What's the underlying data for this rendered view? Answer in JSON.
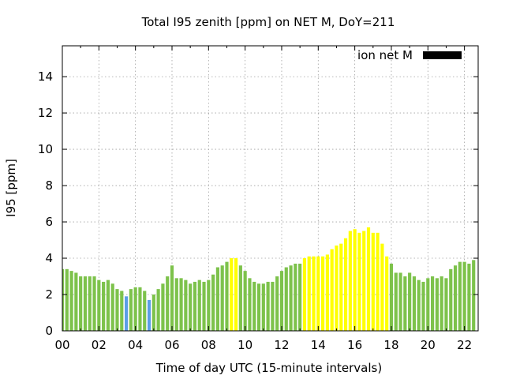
{
  "chart_data": {
    "type": "bar",
    "title": "Total I95 zenith [ppm] on NET M, DoY=211",
    "xlabel": "Time of day UTC (15-minute intervals)",
    "ylabel": "I95 [ppm]",
    "xlim": [
      0,
      22.75
    ],
    "ylim": [
      0,
      15.7
    ],
    "grid": true,
    "legend": {
      "position": "top-right",
      "label": "ion net M",
      "color": "#000000"
    },
    "x_ticks": [
      "00",
      "02",
      "04",
      "06",
      "08",
      "10",
      "12",
      "14",
      "16",
      "18",
      "20",
      "22"
    ],
    "y_ticks": [
      "0",
      "2",
      "4",
      "6",
      "8",
      "10",
      "12",
      "14"
    ],
    "colors": {
      "normal": "#7dc24b",
      "low": "#5b9ee6",
      "high": "#ffff00"
    },
    "interval_hours": 0.25,
    "values": [
      3.4,
      3.4,
      3.3,
      3.2,
      3.0,
      3.0,
      3.0,
      3.0,
      2.8,
      2.7,
      2.8,
      2.6,
      2.3,
      2.2,
      1.9,
      2.3,
      2.4,
      2.4,
      2.2,
      1.7,
      2.0,
      2.3,
      2.6,
      3.0,
      3.6,
      2.9,
      2.9,
      2.8,
      2.6,
      2.7,
      2.8,
      2.7,
      2.8,
      3.1,
      3.5,
      3.6,
      3.8,
      4.0,
      4.0,
      3.6,
      3.3,
      2.9,
      2.7,
      2.6,
      2.6,
      2.7,
      2.7,
      3.0,
      3.3,
      3.5,
      3.6,
      3.7,
      3.7,
      4.0,
      4.1,
      4.1,
      4.1,
      4.1,
      4.2,
      4.5,
      4.7,
      4.8,
      5.1,
      5.5,
      5.6,
      5.4,
      5.5,
      5.7,
      5.4,
      5.4,
      4.8,
      4.1,
      3.7,
      3.2,
      3.2,
      3.0,
      3.2,
      3.0,
      2.8,
      2.7,
      2.9,
      3.0,
      2.9,
      3.0,
      2.9,
      3.4,
      3.6,
      3.8,
      3.8,
      3.7,
      3.9
    ],
    "bar_classes": [
      "normal",
      "normal",
      "normal",
      "normal",
      "normal",
      "normal",
      "normal",
      "normal",
      "normal",
      "normal",
      "normal",
      "normal",
      "normal",
      "normal",
      "low",
      "normal",
      "normal",
      "normal",
      "normal",
      "low",
      "normal",
      "normal",
      "normal",
      "normal",
      "normal",
      "normal",
      "normal",
      "normal",
      "normal",
      "normal",
      "normal",
      "normal",
      "normal",
      "normal",
      "normal",
      "normal",
      "normal",
      "high",
      "high",
      "normal",
      "normal",
      "normal",
      "normal",
      "normal",
      "normal",
      "normal",
      "normal",
      "normal",
      "normal",
      "normal",
      "normal",
      "normal",
      "normal",
      "high",
      "high",
      "high",
      "high",
      "high",
      "high",
      "high",
      "high",
      "high",
      "high",
      "high",
      "high",
      "high",
      "high",
      "high",
      "high",
      "high",
      "high",
      "high",
      "normal",
      "normal",
      "normal",
      "normal",
      "normal",
      "normal",
      "normal",
      "normal",
      "normal",
      "normal",
      "normal",
      "normal",
      "normal",
      "normal",
      "normal",
      "normal",
      "normal",
      "normal",
      "normal"
    ]
  }
}
